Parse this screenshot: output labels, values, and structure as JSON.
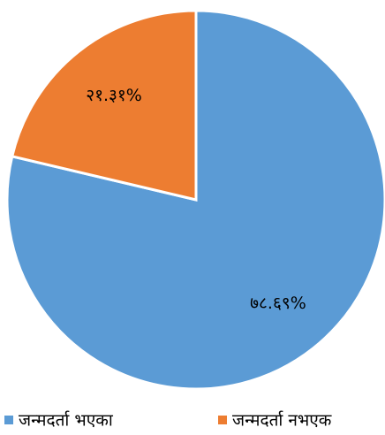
{
  "chart_data": {
    "type": "pie",
    "categories": [
      "जन्मदर्ता भएका",
      "जन्मदर्ता नभएक"
    ],
    "values": [
      78.69,
      21.31
    ],
    "value_labels": [
      "७८.६९%",
      "२१.३१%"
    ],
    "colors": [
      "#5b9bd5",
      "#ed7d31"
    ],
    "legend": "bottom"
  }
}
